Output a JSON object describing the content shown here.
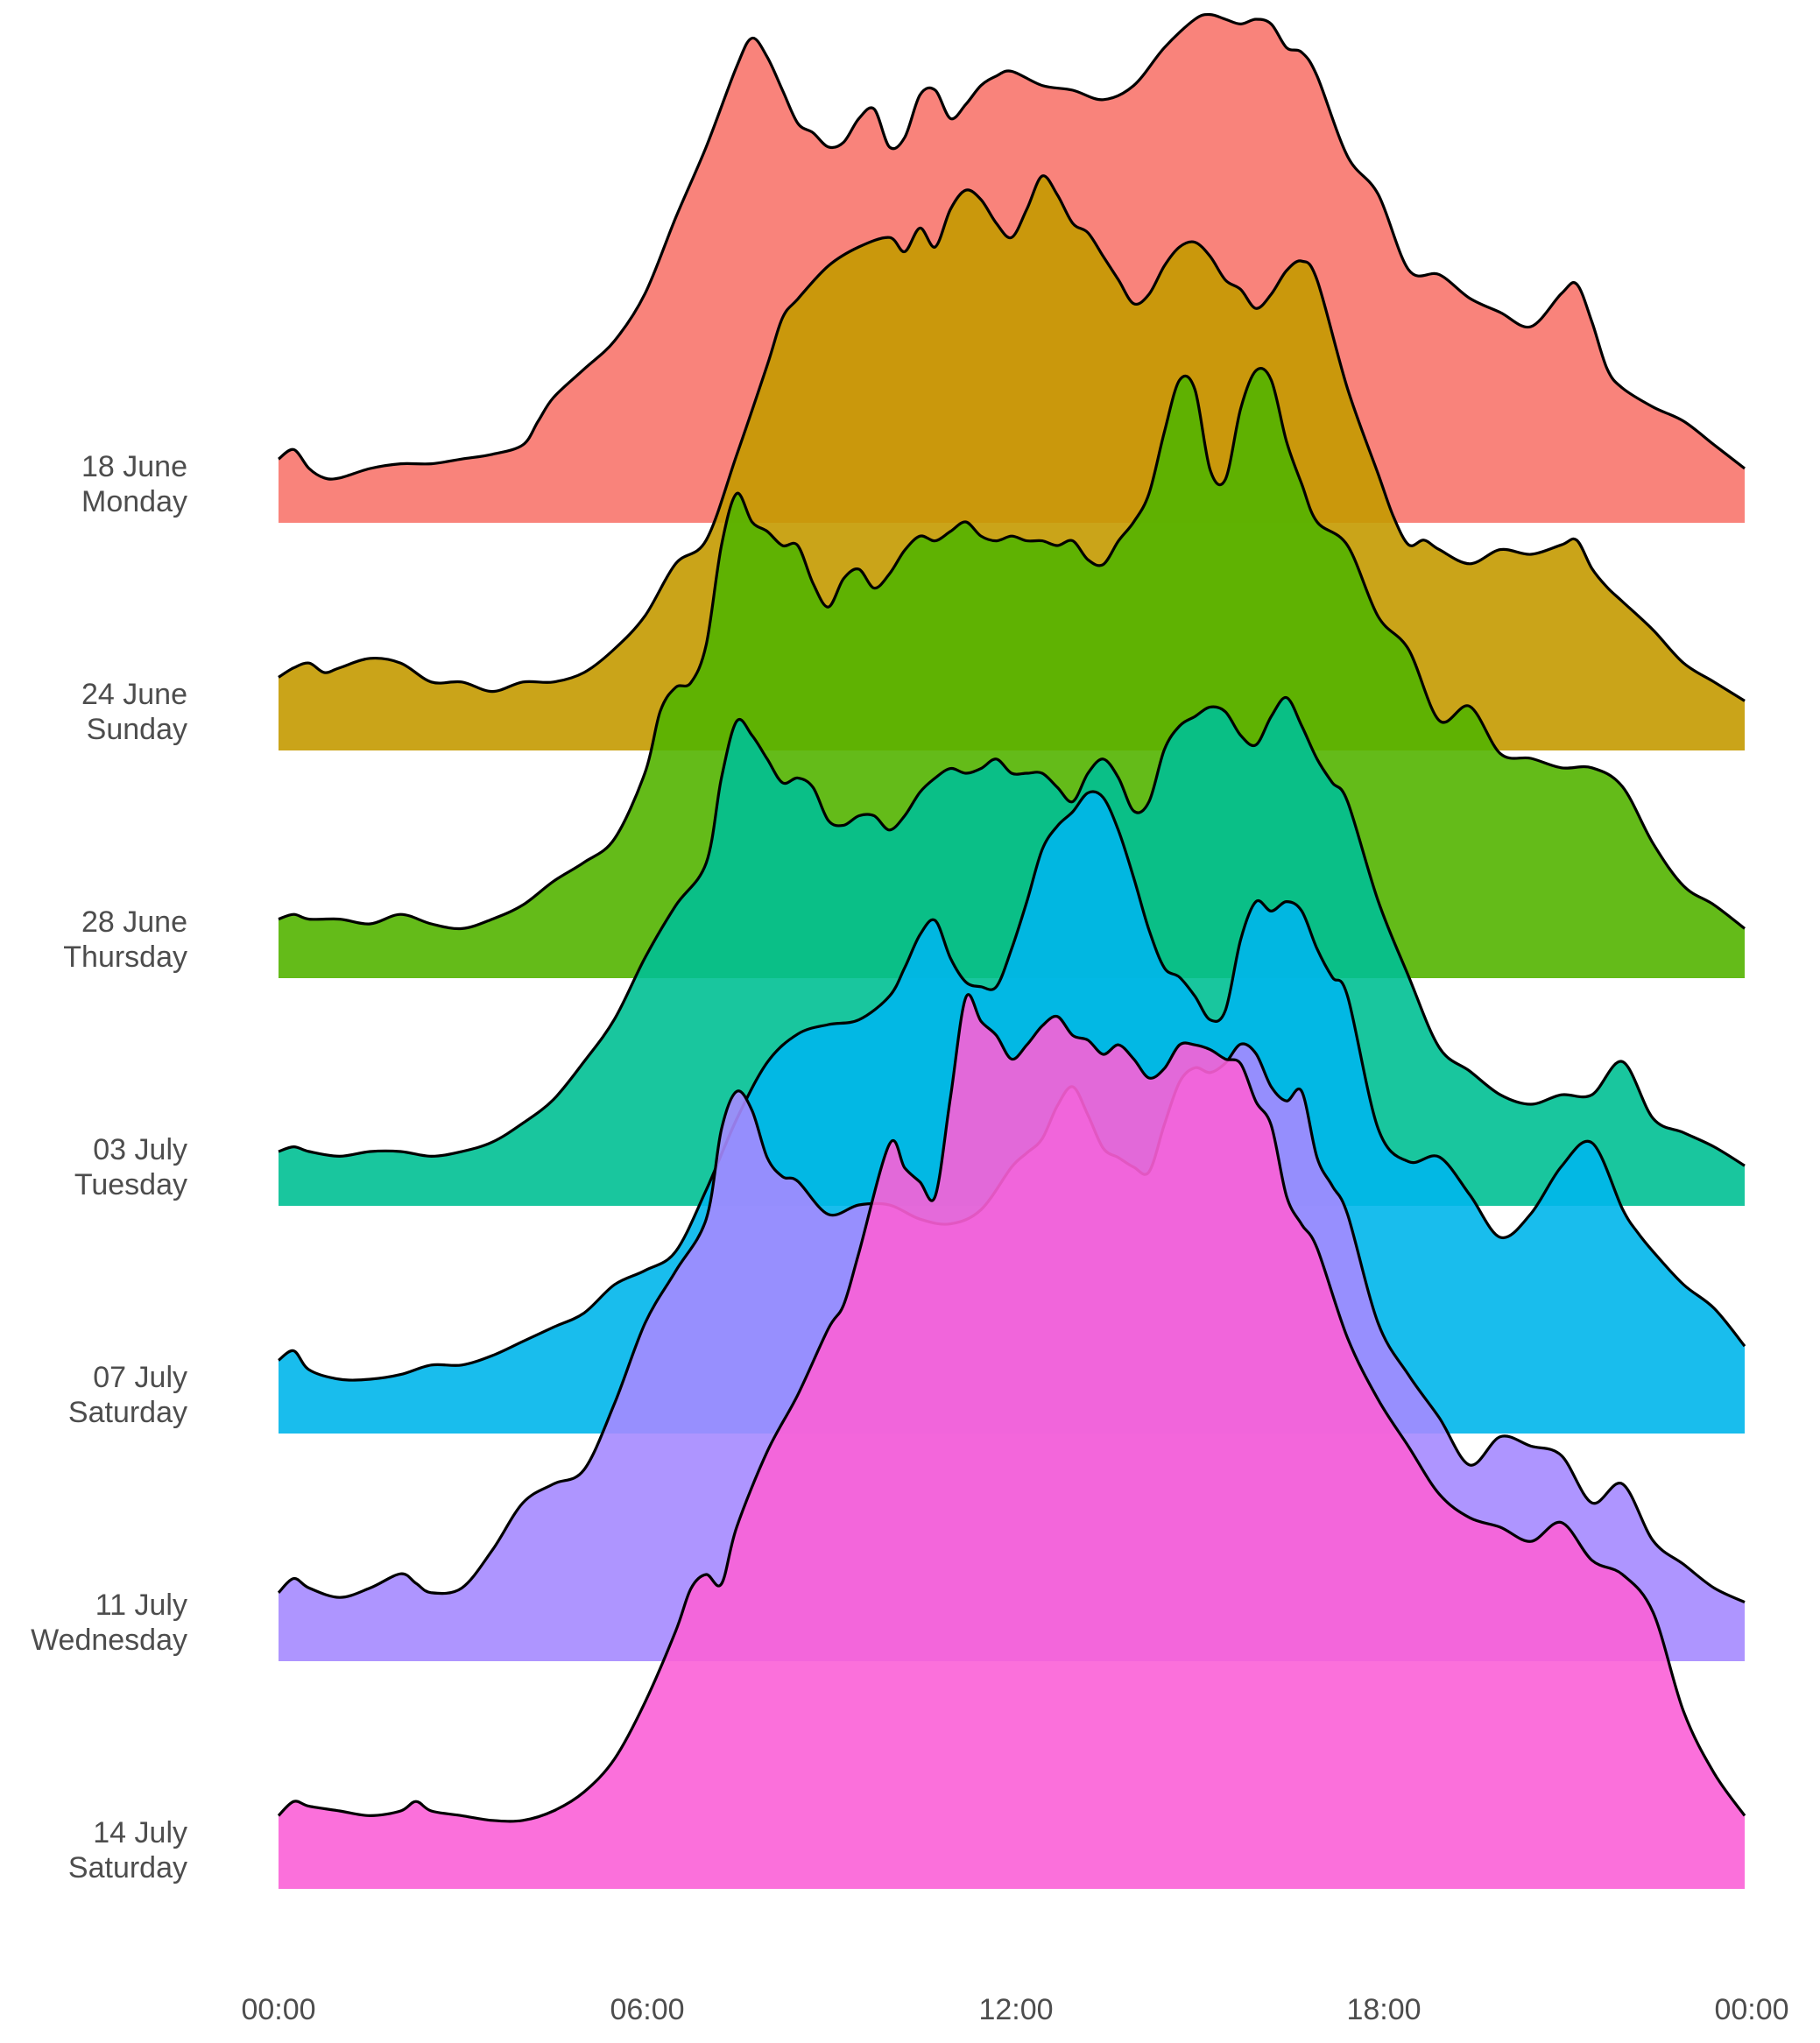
{
  "chart_data": {
    "type": "ridgeline",
    "title": "",
    "xlabel": "",
    "ylabel": "",
    "x_axis": {
      "unit": "hour_of_day",
      "range": [
        0,
        24
      ],
      "ticks": [
        0,
        6,
        12,
        18,
        24
      ],
      "tick_labels": [
        "00:00",
        "06:00",
        "12:00",
        "18:00",
        "00:00"
      ]
    },
    "grid": false,
    "legend": "none",
    "outline_color": "#000000",
    "density_max_reference": 1.0,
    "series": [
      {
        "date": "18 June",
        "weekday": "Monday",
        "color": "#F8766D",
        "x": [
          0,
          0.25,
          0.5,
          0.75,
          1,
          1.5,
          2,
          2.5,
          3,
          3.5,
          4,
          4.25,
          4.5,
          5,
          5.5,
          6,
          6.5,
          7,
          7.5,
          7.75,
          8,
          8.25,
          8.5,
          8.75,
          9,
          9.25,
          9.5,
          9.75,
          10,
          10.25,
          10.5,
          10.75,
          11,
          11.25,
          11.5,
          11.75,
          12,
          12.5,
          13,
          13.5,
          14,
          14.5,
          15,
          15.25,
          15.5,
          15.75,
          16,
          16.25,
          16.5,
          16.75,
          17,
          17.5,
          18,
          18.5,
          19,
          19.5,
          20,
          20.5,
          21,
          21.25,
          21.5,
          21.75,
          22,
          22.5,
          23,
          23.5,
          24
        ],
        "y": [
          0.07,
          0.09,
          0.05,
          0.03,
          0.03,
          0.05,
          0.06,
          0.06,
          0.07,
          0.08,
          0.1,
          0.15,
          0.2,
          0.26,
          0.32,
          0.42,
          0.58,
          0.73,
          0.9,
          0.96,
          0.92,
          0.85,
          0.78,
          0.76,
          0.73,
          0.74,
          0.79,
          0.81,
          0.73,
          0.75,
          0.84,
          0.85,
          0.79,
          0.82,
          0.86,
          0.88,
          0.89,
          0.86,
          0.85,
          0.83,
          0.86,
          0.94,
          1.0,
          1.01,
          1.0,
          0.99,
          1.0,
          0.99,
          0.94,
          0.93,
          0.88,
          0.71,
          0.63,
          0.47,
          0.46,
          0.41,
          0.38,
          0.35,
          0.42,
          0.44,
          0.36,
          0.26,
          0.22,
          0.18,
          0.15,
          0.1,
          0.05
        ]
      },
      {
        "date": "24 June",
        "weekday": "Sunday",
        "color": "#C49A00",
        "x": [
          0,
          0.25,
          0.5,
          0.75,
          1,
          1.5,
          2,
          2.5,
          3,
          3.5,
          4,
          4.5,
          5,
          5.5,
          6,
          6.5,
          7,
          7.5,
          8,
          8.25,
          8.5,
          9,
          9.5,
          10,
          10.25,
          10.5,
          10.75,
          11,
          11.25,
          11.5,
          11.75,
          12,
          12.25,
          12.5,
          12.75,
          13,
          13.25,
          13.5,
          13.75,
          14,
          14.25,
          14.5,
          14.75,
          15,
          15.25,
          15.5,
          15.75,
          16,
          16.25,
          16.5,
          16.75,
          17,
          17.5,
          18,
          18.25,
          18.5,
          18.75,
          19,
          19.5,
          20,
          20.5,
          21,
          21.25,
          21.5,
          21.75,
          22,
          22.5,
          23,
          23.5,
          24
        ],
        "y": [
          0.09,
          0.11,
          0.12,
          0.1,
          0.11,
          0.13,
          0.12,
          0.08,
          0.08,
          0.06,
          0.08,
          0.08,
          0.1,
          0.15,
          0.22,
          0.33,
          0.38,
          0.56,
          0.75,
          0.85,
          0.89,
          0.96,
          1.0,
          1.02,
          0.99,
          1.04,
          1.0,
          1.08,
          1.12,
          1.1,
          1.05,
          1.02,
          1.08,
          1.15,
          1.11,
          1.05,
          1.03,
          0.98,
          0.93,
          0.88,
          0.9,
          0.96,
          1.0,
          1.01,
          0.98,
          0.93,
          0.91,
          0.87,
          0.9,
          0.95,
          0.97,
          0.93,
          0.7,
          0.52,
          0.43,
          0.37,
          0.38,
          0.36,
          0.33,
          0.36,
          0.35,
          0.37,
          0.38,
          0.32,
          0.28,
          0.25,
          0.19,
          0.12,
          0.08,
          0.04
        ]
      },
      {
        "date": "28 June",
        "weekday": "Thursday",
        "color": "#53B400",
        "x": [
          0,
          0.25,
          0.5,
          1,
          1.5,
          2,
          2.5,
          3,
          3.5,
          4,
          4.5,
          5,
          5.5,
          6,
          6.25,
          6.5,
          6.75,
          7,
          7.25,
          7.5,
          7.75,
          8,
          8.25,
          8.5,
          8.75,
          9,
          9.25,
          9.5,
          9.75,
          10,
          10.25,
          10.5,
          10.75,
          11,
          11.25,
          11.5,
          11.75,
          12,
          12.25,
          12.5,
          12.75,
          13,
          13.25,
          13.5,
          13.75,
          14,
          14.25,
          14.5,
          14.75,
          15,
          15.25,
          15.5,
          15.75,
          16,
          16.25,
          16.5,
          16.75,
          17,
          17.5,
          18,
          18.5,
          19,
          19.5,
          20,
          20.5,
          21,
          21.5,
          22,
          22.5,
          23,
          23.5,
          24
        ],
        "y": [
          0.06,
          0.07,
          0.06,
          0.06,
          0.05,
          0.07,
          0.05,
          0.04,
          0.06,
          0.09,
          0.14,
          0.18,
          0.23,
          0.37,
          0.5,
          0.55,
          0.56,
          0.64,
          0.85,
          0.96,
          0.9,
          0.88,
          0.85,
          0.85,
          0.77,
          0.72,
          0.78,
          0.8,
          0.76,
          0.79,
          0.84,
          0.87,
          0.86,
          0.88,
          0.9,
          0.87,
          0.86,
          0.87,
          0.86,
          0.86,
          0.85,
          0.86,
          0.82,
          0.81,
          0.86,
          0.9,
          0.96,
          1.09,
          1.2,
          1.18,
          1.01,
          0.99,
          1.14,
          1.22,
          1.2,
          1.07,
          0.98,
          0.9,
          0.85,
          0.7,
          0.63,
          0.48,
          0.51,
          0.41,
          0.4,
          0.38,
          0.38,
          0.34,
          0.22,
          0.13,
          0.09,
          0.04
        ]
      },
      {
        "date": "03 July",
        "weekday": "Tuesday",
        "color": "#00C094",
        "x": [
          0,
          0.25,
          0.5,
          1,
          1.5,
          2,
          2.5,
          3,
          3.5,
          4,
          4.5,
          5,
          5.5,
          6,
          6.5,
          7,
          7.25,
          7.5,
          7.75,
          8,
          8.25,
          8.5,
          8.75,
          9,
          9.25,
          9.5,
          9.75,
          10,
          10.25,
          10.5,
          10.75,
          11,
          11.25,
          11.5,
          11.75,
          12,
          12.25,
          12.5,
          12.75,
          13,
          13.25,
          13.5,
          13.75,
          14,
          14.25,
          14.5,
          14.75,
          15,
          15.25,
          15.5,
          15.75,
          16,
          16.25,
          16.5,
          16.75,
          17,
          17.25,
          17.5,
          18,
          18.5,
          19,
          19.5,
          20,
          20.5,
          21,
          21.5,
          22,
          22.5,
          23,
          23.5,
          24
        ],
        "y": [
          0.05,
          0.06,
          0.05,
          0.04,
          0.05,
          0.05,
          0.04,
          0.05,
          0.07,
          0.11,
          0.16,
          0.24,
          0.33,
          0.46,
          0.57,
          0.66,
          0.84,
          0.96,
          0.93,
          0.88,
          0.83,
          0.84,
          0.82,
          0.75,
          0.74,
          0.76,
          0.76,
          0.73,
          0.76,
          0.81,
          0.84,
          0.86,
          0.85,
          0.86,
          0.88,
          0.85,
          0.85,
          0.85,
          0.82,
          0.79,
          0.85,
          0.88,
          0.84,
          0.77,
          0.79,
          0.9,
          0.95,
          0.97,
          0.99,
          0.98,
          0.93,
          0.91,
          0.97,
          1.01,
          0.95,
          0.88,
          0.83,
          0.79,
          0.58,
          0.42,
          0.27,
          0.22,
          0.17,
          0.15,
          0.17,
          0.17,
          0.24,
          0.12,
          0.09,
          0.06,
          0.02
        ]
      },
      {
        "date": "07 July",
        "weekday": "Saturday",
        "color": "#00B6EB",
        "x": [
          0,
          0.25,
          0.5,
          1,
          1.5,
          2,
          2.5,
          3,
          3.5,
          4,
          4.5,
          5,
          5.5,
          6,
          6.5,
          7,
          7.5,
          8,
          8.5,
          9,
          9.5,
          10,
          10.25,
          10.5,
          10.75,
          11,
          11.25,
          11.5,
          11.75,
          12,
          12.25,
          12.5,
          12.75,
          13,
          13.25,
          13.5,
          13.75,
          14,
          14.25,
          14.5,
          14.75,
          15,
          15.25,
          15.5,
          15.75,
          16,
          16.25,
          16.5,
          16.75,
          17,
          17.25,
          17.5,
          18,
          18.5,
          19,
          19.5,
          20,
          20.5,
          21,
          21.5,
          22,
          22.25,
          22.5,
          23,
          23.5,
          24
        ],
        "y": [
          0.09,
          0.11,
          0.07,
          0.05,
          0.05,
          0.06,
          0.08,
          0.08,
          0.1,
          0.13,
          0.16,
          0.19,
          0.25,
          0.28,
          0.32,
          0.45,
          0.6,
          0.72,
          0.78,
          0.8,
          0.81,
          0.86,
          0.92,
          0.99,
          1.02,
          0.94,
          0.89,
          0.88,
          0.88,
          0.96,
          1.06,
          1.17,
          1.22,
          1.25,
          1.29,
          1.28,
          1.21,
          1.11,
          1.0,
          0.92,
          0.9,
          0.86,
          0.81,
          0.83,
          0.98,
          1.06,
          1.04,
          1.06,
          1.04,
          0.96,
          0.9,
          0.86,
          0.58,
          0.51,
          0.52,
          0.44,
          0.35,
          0.4,
          0.5,
          0.55,
          0.41,
          0.36,
          0.32,
          0.25,
          0.2,
          0.12
        ]
      },
      {
        "date": "11 July",
        "weekday": "Wednesday",
        "color": "#A58AFF",
        "x": [
          0,
          0.25,
          0.5,
          1,
          1.5,
          2,
          2.25,
          2.5,
          3,
          3.5,
          4,
          4.5,
          5,
          5.5,
          6,
          6.5,
          7,
          7.25,
          7.5,
          7.75,
          8,
          8.25,
          8.5,
          9,
          9.5,
          10,
          10.5,
          11,
          11.5,
          12,
          12.25,
          12.5,
          12.75,
          13,
          13.25,
          13.5,
          13.75,
          14,
          14.25,
          14.5,
          14.75,
          15,
          15.25,
          15.5,
          15.75,
          16,
          16.25,
          16.5,
          16.75,
          17,
          17.25,
          17.5,
          18,
          18.5,
          19,
          19.5,
          20,
          20.5,
          21,
          21.5,
          22,
          22.5,
          23,
          23.5,
          24
        ],
        "y": [
          0.08,
          0.11,
          0.09,
          0.07,
          0.09,
          0.12,
          0.1,
          0.08,
          0.09,
          0.17,
          0.27,
          0.31,
          0.34,
          0.48,
          0.65,
          0.76,
          0.87,
          1.06,
          1.14,
          1.1,
          1.0,
          0.96,
          0.95,
          0.88,
          0.9,
          0.9,
          0.87,
          0.86,
          0.89,
          0.98,
          1.01,
          1.04,
          1.11,
          1.15,
          1.09,
          1.02,
          1.0,
          0.98,
          0.97,
          1.07,
          1.16,
          1.19,
          1.18,
          1.2,
          1.24,
          1.22,
          1.15,
          1.12,
          1.14,
          1.0,
          0.94,
          0.88,
          0.65,
          0.54,
          0.45,
          0.35,
          0.41,
          0.39,
          0.37,
          0.27,
          0.31,
          0.19,
          0.14,
          0.09,
          0.06
        ]
      },
      {
        "date": "14 July",
        "weekday": "Saturday",
        "color": "#FB61D7",
        "x": [
          0,
          0.25,
          0.5,
          1,
          1.5,
          2,
          2.25,
          2.5,
          3,
          3.5,
          4,
          4.5,
          5,
          5.5,
          6,
          6.5,
          6.75,
          7,
          7.25,
          7.5,
          8,
          8.5,
          9,
          9.25,
          9.5,
          10,
          10.25,
          10.5,
          10.75,
          11,
          11.25,
          11.5,
          11.75,
          12,
          12.25,
          12.5,
          12.75,
          13,
          13.25,
          13.5,
          13.75,
          14,
          14.25,
          14.5,
          14.75,
          15,
          15.25,
          15.5,
          15.75,
          16,
          16.25,
          16.5,
          16.75,
          17,
          17.5,
          18,
          18.5,
          19,
          19.5,
          20,
          20.5,
          21,
          21.5,
          22,
          22.5,
          23,
          23.5,
          24
        ],
        "y": [
          0.09,
          0.12,
          0.11,
          0.1,
          0.09,
          0.1,
          0.12,
          0.1,
          0.09,
          0.08,
          0.08,
          0.1,
          0.14,
          0.21,
          0.33,
          0.48,
          0.57,
          0.6,
          0.58,
          0.7,
          0.86,
          0.98,
          1.12,
          1.17,
          1.28,
          1.51,
          1.46,
          1.43,
          1.4,
          1.61,
          1.82,
          1.77,
          1.74,
          1.69,
          1.72,
          1.76,
          1.78,
          1.74,
          1.73,
          1.7,
          1.72,
          1.69,
          1.65,
          1.67,
          1.72,
          1.72,
          1.71,
          1.69,
          1.68,
          1.6,
          1.55,
          1.4,
          1.34,
          1.29,
          1.1,
          0.97,
          0.87,
          0.77,
          0.72,
          0.7,
          0.67,
          0.71,
          0.63,
          0.6,
          0.52,
          0.31,
          0.18,
          0.09
        ]
      }
    ]
  },
  "labels": {
    "rows": [
      {
        "date": "18 June",
        "weekday": "Monday"
      },
      {
        "date": "24 June",
        "weekday": "Sunday"
      },
      {
        "date": "28 June",
        "weekday": "Thursday"
      },
      {
        "date": "03 July",
        "weekday": "Tuesday"
      },
      {
        "date": "07 July",
        "weekday": "Saturday"
      },
      {
        "date": "11 July",
        "weekday": "Wednesday"
      },
      {
        "date": "14 July",
        "weekday": "Saturday"
      }
    ],
    "x_ticks": [
      "00:00",
      "06:00",
      "12:00",
      "18:00",
      "00:00"
    ]
  }
}
